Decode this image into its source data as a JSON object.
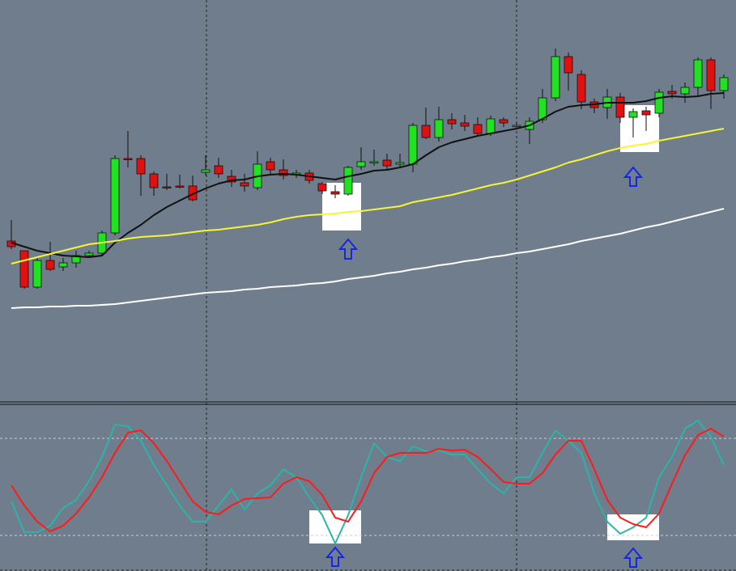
{
  "chart_data": [
    {
      "type": "candlestick",
      "ylim": [
        0,
        497
      ],
      "up_color": "#22e022",
      "down_color": "#e01010",
      "open": [
        199,
        187,
        142,
        175,
        167,
        172,
        181,
        184,
        209,
        301,
        301,
        282,
        266,
        267,
        267,
        284,
        292,
        279,
        271,
        265,
        297,
        287,
        282,
        283,
        270,
        260,
        257,
        291,
        297,
        299,
        294,
        294,
        342,
        327,
        349,
        345,
        343,
        332,
        349,
        342,
        337,
        349,
        376,
        427,
        405,
        371,
        364,
        377,
        352,
        360,
        357,
        384,
        381,
        389,
        423,
        385
      ],
      "high": [
        225,
        187,
        178,
        198,
        178,
        187,
        187,
        212,
        305,
        335,
        305,
        285,
        282,
        281,
        280,
        305,
        302,
        287,
        282,
        310,
        302,
        300,
        287,
        287,
        272,
        268,
        292,
        315,
        312,
        307,
        307,
        345,
        364,
        365,
        357,
        355,
        352,
        354,
        352,
        347,
        352,
        387,
        437,
        432,
        410,
        375,
        387,
        382,
        363,
        365,
        387,
        392,
        395,
        426,
        426,
        405
      ],
      "low": [
        189,
        140,
        140,
        162,
        162,
        166,
        179,
        181,
        206,
        290,
        255,
        255,
        262,
        264,
        248,
        280,
        277,
        266,
        260,
        262,
        282,
        275,
        277,
        270,
        257,
        252,
        255,
        287,
        292,
        287,
        290,
        284,
        325,
        322,
        337,
        335,
        329,
        329,
        340,
        337,
        319,
        345,
        372,
        385,
        362,
        357,
        350,
        345,
        327,
        335,
        352,
        375,
        370,
        378,
        362,
        375
      ],
      "close": [
        192,
        142,
        175,
        164,
        172,
        181,
        184,
        209,
        301,
        300,
        282,
        265,
        265,
        266,
        250,
        287,
        282,
        272,
        267,
        294,
        287,
        280,
        283,
        274,
        261,
        257,
        290,
        297,
        297,
        292,
        296,
        342,
        327,
        349,
        344,
        341,
        332,
        350,
        345,
        342,
        347,
        376,
        427,
        407,
        371,
        364,
        377,
        352,
        359,
        355,
        383,
        381,
        389,
        423,
        385,
        401
      ],
      "series": [
        {
          "color": "#111111",
          "values": [
            197,
            192,
            187,
            184,
            181,
            180,
            179,
            181,
            197,
            209,
            219,
            231,
            241,
            249,
            257,
            264,
            270,
            274,
            275,
            279,
            281,
            282,
            281,
            279,
            277,
            275,
            279,
            282,
            286,
            287,
            290,
            294,
            305,
            315,
            321,
            325,
            329,
            332,
            335,
            338,
            342,
            350,
            359,
            365,
            367,
            368,
            370,
            370,
            370,
            372,
            376,
            378,
            377,
            378,
            381,
            382
          ]
        },
        {
          "color": "#f5f532",
          "values": [
            171,
            175,
            179,
            183,
            187,
            191,
            195,
            197,
            199,
            202,
            204,
            205,
            206,
            208,
            210,
            212,
            213,
            215,
            217,
            219,
            222,
            226,
            229,
            231,
            232,
            233,
            235,
            236,
            238,
            240,
            242,
            247,
            250,
            253,
            256,
            260,
            264,
            268,
            271,
            275,
            280,
            285,
            290,
            296,
            300,
            305,
            310,
            314,
            317,
            319,
            323,
            326,
            329,
            332,
            335,
            338
          ]
        },
        {
          "color": "#ffffff",
          "values": [
            116,
            117,
            117,
            118,
            118,
            119,
            119,
            120,
            121,
            123,
            125,
            127,
            129,
            131,
            133,
            135,
            136,
            137,
            139,
            140,
            142,
            143,
            144,
            146,
            147,
            149,
            152,
            154,
            156,
            159,
            161,
            164,
            166,
            169,
            171,
            174,
            176,
            179,
            181,
            184,
            186,
            189,
            192,
            195,
            199,
            202,
            205,
            208,
            212,
            216,
            219,
            223,
            227,
            231,
            235,
            239
          ]
        }
      ]
    },
    {
      "type": "line",
      "ylim": [
        0,
        100
      ],
      "levels": [
        80,
        20
      ],
      "series": [
        {
          "color": "#2ab5a8",
          "values": [
            41,
            22,
            22,
            26,
            37,
            42,
            53.5,
            68.5,
            88.5,
            87.5,
            78.5,
            63.5,
            51,
            38.5,
            28.5,
            28.5,
            38.5,
            48.5,
            36,
            46,
            51,
            61,
            56,
            43.5,
            32.5,
            15,
            32.5,
            56,
            77,
            68.5,
            66,
            75,
            72,
            72.5,
            70,
            70,
            61,
            52,
            46,
            56,
            56,
            71,
            85,
            78.5,
            71,
            46,
            28.5,
            21,
            25,
            31,
            56,
            68.5,
            86,
            91,
            81,
            63.5
          ]
        },
        {
          "color": "#ff1a1a",
          "values": [
            51,
            38.5,
            28.5,
            22.5,
            26,
            33.5,
            43.5,
            56,
            71,
            83.5,
            85,
            77,
            66,
            53.5,
            41,
            34.5,
            33,
            38.5,
            42.5,
            43,
            43.5,
            52,
            56,
            53.5,
            45,
            31,
            28.5,
            41,
            58.5,
            68.5,
            71,
            71,
            71,
            73.5,
            72.5,
            73,
            68.5,
            61,
            53,
            52,
            52,
            58.5,
            70,
            78.5,
            78.5,
            61,
            42,
            31,
            27,
            25,
            33.5,
            52,
            69.5,
            82,
            86,
            81
          ]
        }
      ]
    }
  ]
}
